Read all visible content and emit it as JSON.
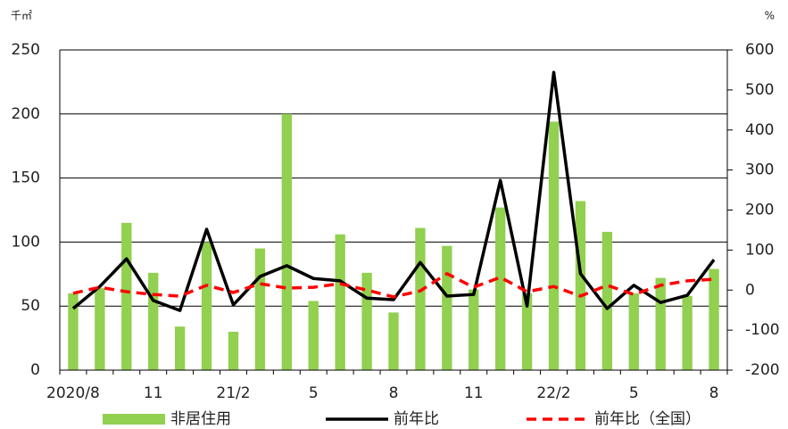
{
  "chart_data": {
    "type": "bar_line",
    "y_unit": "千㎡",
    "y2_unit": "%",
    "categories": [
      "2020/8",
      null,
      null,
      "11",
      null,
      null,
      "21/2",
      null,
      null,
      "5",
      null,
      null,
      "8",
      null,
      null,
      "11",
      null,
      null,
      "22/2",
      null,
      null,
      "5",
      null,
      null,
      "8"
    ],
    "series": [
      {
        "name": "非居住用",
        "type": "bar",
        "color": "#92d050",
        "values": [
          60,
          64,
          115,
          76,
          34,
          100,
          30,
          95,
          200,
          54,
          106,
          76,
          45,
          111,
          97,
          63,
          127,
          60,
          194,
          132,
          108,
          60,
          72,
          58,
          79
        ]
      },
      {
        "name": "前年比",
        "type": "line",
        "axis": "y2",
        "color": "#000000",
        "values": [
          -46,
          9,
          78,
          -26,
          -51,
          152,
          -37,
          34,
          61,
          29,
          23,
          -20,
          -24,
          69,
          -15,
          -11,
          274,
          -40,
          544,
          41,
          -46,
          12,
          -31,
          -13,
          76
        ]
      },
      {
        "name": "前年比（全国）",
        "type": "line",
        "axis": "y2",
        "dashed": true,
        "color": "#ff0000",
        "values": [
          -8,
          7,
          -4,
          -11,
          -15,
          12,
          -6,
          16,
          5,
          7,
          16,
          0,
          -17,
          -2,
          41,
          7,
          32,
          -4,
          9,
          -15,
          12,
          -11,
          12,
          23,
          27
        ]
      }
    ],
    "ylim": [
      0,
      250
    ],
    "yticks": [
      0,
      50,
      100,
      150,
      200,
      250
    ],
    "y2lim": [
      -200,
      600
    ],
    "y2ticks": [
      -200,
      -100,
      0,
      100,
      200,
      300,
      400,
      500,
      600
    ],
    "grid": true,
    "legend": "bottom"
  }
}
